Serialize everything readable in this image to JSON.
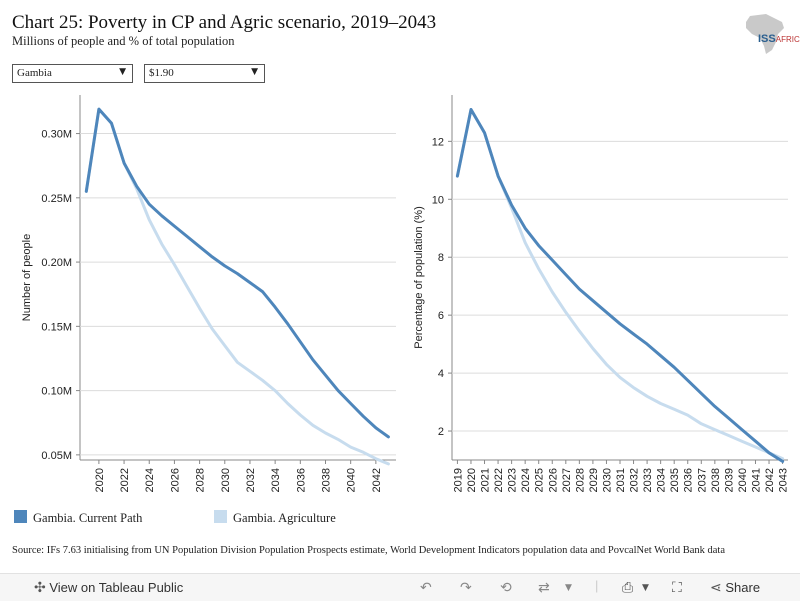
{
  "title": "Chart 25: Poverty in CP and Agric scenario, 2019–2043",
  "subtitle": "Millions of people and % of total population",
  "logo": {
    "text": "ISS",
    "suffix": "AFRICA"
  },
  "filters": {
    "country": "Gambia",
    "poverty_line": "$1.90"
  },
  "legend": [
    {
      "label": "Gambia. Current Path",
      "color": "#4e86bb"
    },
    {
      "label": "Gambia. Agriculture",
      "color": "#c7dcee"
    }
  ],
  "source": "Source: IFs 7.63 initialising from UN Population Division Population Prospects estimate, World Development Indicators population data and PovcalNet World Bank data",
  "toolbar": {
    "view_label": "View on Tableau Public",
    "share_label": "Share"
  },
  "colors": {
    "current_path": "#4e86bb",
    "agriculture": "#c7dcee",
    "grid": "#dcdcdc"
  },
  "chart_data": [
    {
      "type": "line",
      "title": "",
      "xlabel": "",
      "ylabel": "Number of people",
      "x": [
        2019,
        2020,
        2021,
        2022,
        2023,
        2024,
        2025,
        2026,
        2027,
        2028,
        2029,
        2030,
        2031,
        2032,
        2033,
        2034,
        2035,
        2036,
        2037,
        2038,
        2039,
        2040,
        2041,
        2042,
        2043
      ],
      "x_ticks": [
        "2020",
        "2022",
        "2024",
        "2026",
        "2028",
        "2030",
        "2032",
        "2034",
        "2036",
        "2038",
        "2040",
        "2042"
      ],
      "y_ticks": [
        "0.05M",
        "0.10M",
        "0.15M",
        "0.20M",
        "0.25M",
        "0.30M"
      ],
      "y_tick_values": [
        0.05,
        0.1,
        0.15,
        0.2,
        0.25,
        0.3
      ],
      "ylim": [
        0.046,
        0.33
      ],
      "grid": true,
      "series": [
        {
          "name": "Gambia. Current Path",
          "values": [
            0.255,
            0.319,
            0.308,
            0.277,
            0.259,
            0.245,
            0.236,
            0.228,
            0.22,
            0.212,
            0.204,
            0.197,
            0.191,
            0.184,
            0.177,
            0.165,
            0.152,
            0.138,
            0.124,
            0.112,
            0.1,
            0.09,
            0.08,
            0.071,
            0.064
          ]
        },
        {
          "name": "Gambia. Agriculture",
          "values": [
            0.255,
            0.319,
            0.308,
            0.277,
            0.257,
            0.233,
            0.214,
            0.198,
            0.181,
            0.164,
            0.148,
            0.135,
            0.122,
            0.115,
            0.108,
            0.1,
            0.09,
            0.081,
            0.073,
            0.067,
            0.062,
            0.056,
            0.052,
            0.047,
            0.043
          ]
        }
      ]
    },
    {
      "type": "line",
      "title": "",
      "xlabel": "",
      "ylabel": "Percentage of population (%)",
      "x": [
        2019,
        2020,
        2021,
        2022,
        2023,
        2024,
        2025,
        2026,
        2027,
        2028,
        2029,
        2030,
        2031,
        2032,
        2033,
        2034,
        2035,
        2036,
        2037,
        2038,
        2039,
        2040,
        2041,
        2042,
        2043
      ],
      "x_ticks": [
        "2019",
        "2020",
        "2021",
        "2022",
        "2023",
        "2024",
        "2025",
        "2026",
        "2027",
        "2028",
        "2029",
        "2030",
        "2031",
        "2032",
        "2033",
        "2034",
        "2035",
        "2036",
        "2037",
        "2038",
        "2039",
        "2040",
        "2041",
        "2042",
        "2043"
      ],
      "y_ticks": [
        "2",
        "4",
        "6",
        "8",
        "10",
        "12"
      ],
      "y_tick_values": [
        2,
        4,
        6,
        8,
        10,
        12
      ],
      "ylim": [
        1.0,
        13.6
      ],
      "grid": true,
      "series": [
        {
          "name": "Gambia. Current Path",
          "values": [
            10.8,
            13.1,
            12.3,
            10.8,
            9.8,
            9.0,
            8.4,
            7.9,
            7.4,
            6.9,
            6.5,
            6.1,
            5.7,
            5.35,
            5.0,
            4.6,
            4.2,
            3.75,
            3.3,
            2.85,
            2.45,
            2.05,
            1.65,
            1.25,
            0.95
          ]
        },
        {
          "name": "Gambia. Agriculture",
          "values": [
            10.8,
            13.1,
            12.3,
            10.8,
            9.7,
            8.5,
            7.6,
            6.8,
            6.1,
            5.45,
            4.85,
            4.3,
            3.85,
            3.5,
            3.2,
            2.95,
            2.75,
            2.55,
            2.25,
            2.05,
            1.85,
            1.65,
            1.45,
            1.25,
            1.05
          ]
        }
      ]
    }
  ]
}
